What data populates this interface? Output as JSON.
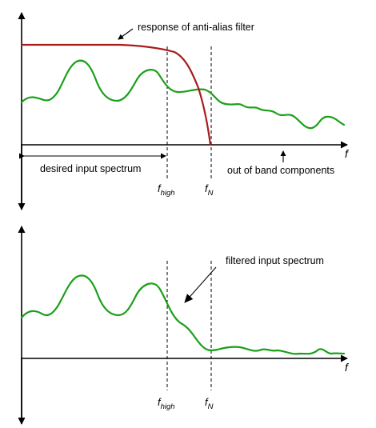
{
  "top_panel": {
    "filter_label": "response of anti-alias filter",
    "desired_label": "desired input spectrum",
    "out_of_band_label": "out of band components",
    "axis_label": "f",
    "f_high": {
      "main": "f",
      "sub": "high"
    },
    "f_N": {
      "main": "f",
      "sub": "N"
    }
  },
  "bottom_panel": {
    "filtered_label": "filtered input spectrum",
    "axis_label": "f",
    "f_high": {
      "main": "f",
      "sub": "high"
    },
    "f_N": {
      "main": "f",
      "sub": "N"
    }
  },
  "colors": {
    "spectrum": "#1aa01a",
    "filter_response": "#a81c1c"
  }
}
